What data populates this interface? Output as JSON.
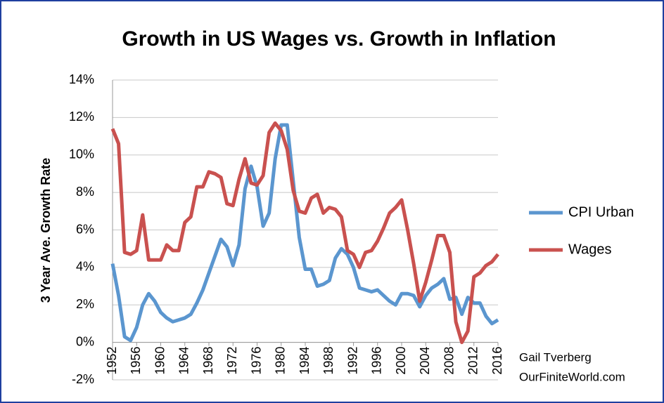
{
  "chart_data": {
    "type": "line",
    "title": "Growth in US Wages vs. Growth in Inflation",
    "y_label": "3 Year Ave. Growth Rate",
    "annotations": [
      "Gail Tverberg",
      "OurFiniteWorld.com"
    ],
    "x": [
      1952,
      1953,
      1954,
      1955,
      1956,
      1957,
      1958,
      1959,
      1960,
      1961,
      1962,
      1963,
      1964,
      1965,
      1966,
      1967,
      1968,
      1969,
      1970,
      1971,
      1972,
      1973,
      1974,
      1975,
      1976,
      1977,
      1978,
      1979,
      1980,
      1981,
      1982,
      1983,
      1984,
      1985,
      1986,
      1987,
      1988,
      1989,
      1990,
      1991,
      1992,
      1993,
      1994,
      1995,
      1996,
      1997,
      1998,
      1999,
      2000,
      2001,
      2002,
      2003,
      2004,
      2005,
      2006,
      2007,
      2008,
      2009,
      2010,
      2011,
      2012,
      2013,
      2014,
      2015,
      2016
    ],
    "series": [
      {
        "name": "CPI Urban",
        "color": "#5b96cf",
        "values": [
          4.2,
          2.5,
          0.3,
          0.1,
          0.8,
          2.0,
          2.6,
          2.2,
          1.6,
          1.3,
          1.1,
          1.2,
          1.3,
          1.5,
          2.1,
          2.8,
          3.7,
          4.6,
          5.5,
          5.1,
          4.1,
          5.2,
          8.2,
          9.4,
          8.3,
          6.2,
          6.9,
          9.8,
          11.6,
          11.6,
          8.6,
          5.6,
          3.9,
          3.9,
          3.0,
          3.1,
          3.3,
          4.5,
          5.0,
          4.7,
          4.0,
          2.9,
          2.8,
          2.7,
          2.8,
          2.5,
          2.2,
          2.0,
          2.6,
          2.6,
          2.5,
          1.9,
          2.5,
          2.9,
          3.1,
          3.4,
          2.3,
          2.4,
          1.5,
          2.4,
          2.1,
          2.1,
          1.4,
          1.0,
          1.2
        ]
      },
      {
        "name": "Wages",
        "color": "#c9514f",
        "values": [
          11.4,
          10.6,
          4.8,
          4.7,
          4.9,
          6.8,
          4.4,
          4.4,
          4.4,
          5.2,
          4.9,
          4.9,
          6.4,
          6.7,
          8.3,
          8.3,
          9.1,
          9.0,
          8.8,
          7.4,
          7.3,
          8.7,
          9.8,
          8.5,
          8.4,
          8.9,
          11.2,
          11.7,
          11.3,
          10.3,
          8.1,
          7.0,
          6.9,
          7.7,
          7.9,
          6.9,
          7.2,
          7.1,
          6.7,
          4.9,
          4.7,
          4.0,
          4.8,
          4.9,
          5.4,
          6.1,
          6.9,
          7.2,
          7.6,
          6.0,
          4.2,
          2.2,
          3.2,
          4.4,
          5.7,
          5.7,
          4.8,
          1.1,
          0.0,
          0.6,
          3.5,
          3.7,
          4.1,
          4.3,
          4.7
        ]
      }
    ],
    "xlim": [
      1952,
      2016
    ],
    "xticks": [
      1952,
      1956,
      1960,
      1964,
      1968,
      1972,
      1976,
      1980,
      1984,
      1988,
      1992,
      1996,
      2000,
      2004,
      2008,
      2012,
      2016
    ],
    "ylim": [
      -2,
      14
    ],
    "yticks": [
      {
        "value": -2,
        "label": "-2%"
      },
      {
        "value": 0,
        "label": "0%"
      },
      {
        "value": 2,
        "label": "2%"
      },
      {
        "value": 4,
        "label": "4%"
      },
      {
        "value": 6,
        "label": "6%"
      },
      {
        "value": 8,
        "label": "8%"
      },
      {
        "value": 10,
        "label": "10%"
      },
      {
        "value": 12,
        "label": "12%"
      },
      {
        "value": 14,
        "label": "14%"
      }
    ],
    "grid": true,
    "legend": "right"
  }
}
